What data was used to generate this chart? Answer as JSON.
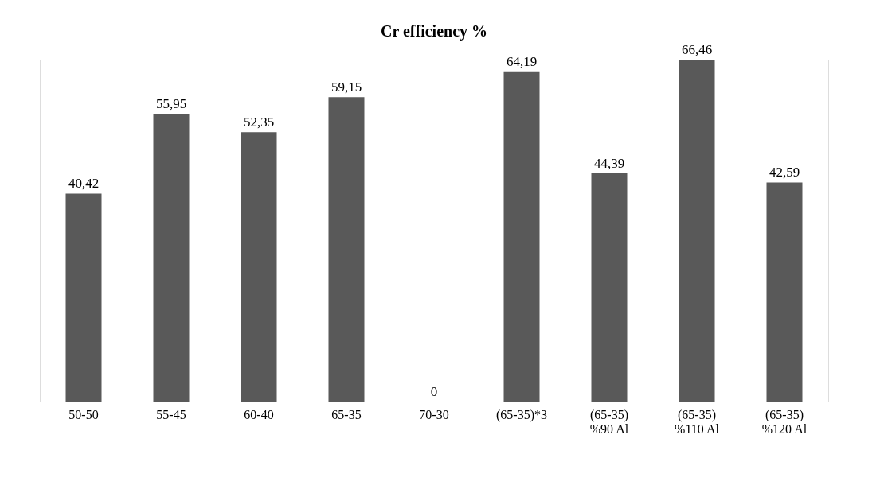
{
  "chart_data": {
    "type": "bar",
    "title": "Cr efficiency %",
    "categories": [
      "50-50",
      "55-45",
      "60-40",
      "65-35",
      "70-30",
      "(65-35)*3",
      "(65-35)\n%90 Al",
      "(65-35)\n%110 Al",
      "(65-35)\n%120 Al"
    ],
    "values": [
      40.42,
      55.95,
      52.35,
      59.15,
      0,
      64.19,
      44.39,
      66.46,
      42.59
    ],
    "value_labels": [
      "40,42",
      "55,95",
      "52,35",
      "59,15",
      "0",
      "64,19",
      "44,39",
      "66,46",
      "42,59"
    ],
    "color": "#595959",
    "grid": false
  }
}
